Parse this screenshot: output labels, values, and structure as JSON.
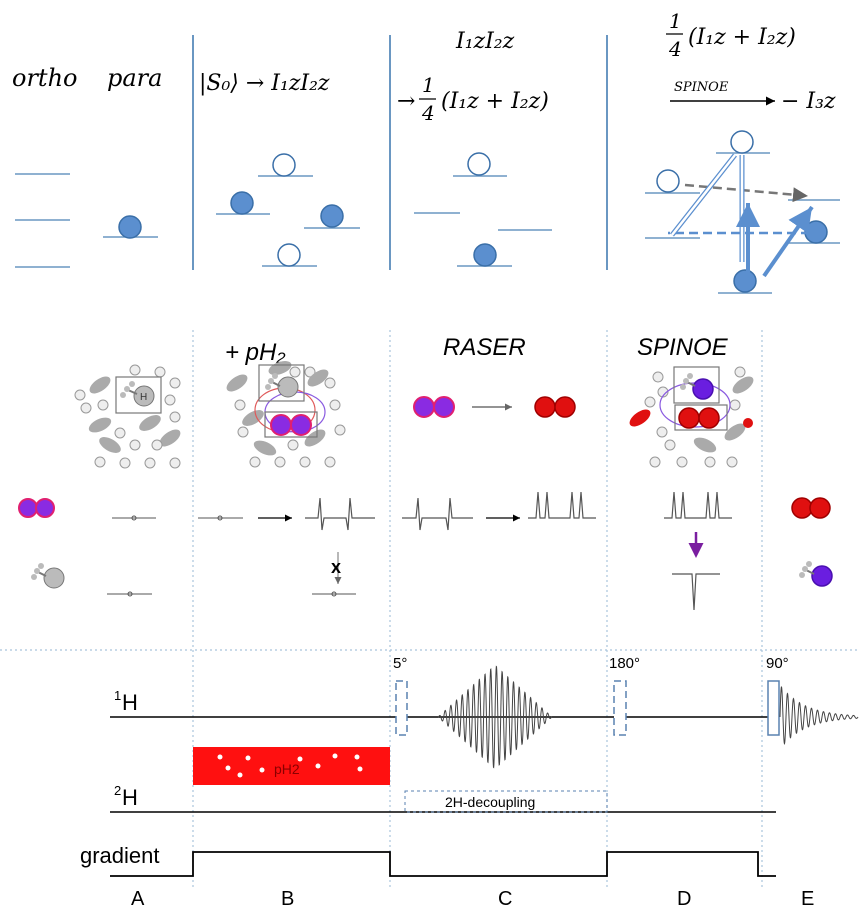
{
  "energy_panels": {
    "ortho_label": "ortho",
    "para_label": "para",
    "panel2_line1": "|S₀⟩ → I₁zI₂z",
    "panel3_line1": "I₁zI₂z",
    "panel3_line2_prefix": "→",
    "panel3_fraction_num": "1",
    "panel3_fraction_den": "4",
    "panel3_expr": "(I₁z + I₂z)",
    "panel4_fraction_num": "1",
    "panel4_fraction_den": "4",
    "panel4_expr": "(I₁z + I₂z)",
    "panel4_arrow_label": "SPINOE",
    "panel4_result": "− I₃z"
  },
  "molecule_panels": {
    "phase_b_title": "+ pH₂",
    "phase_c_title": "RASER",
    "phase_d_title": "SPINOE",
    "h_label": "H",
    "blocked_mark": "x"
  },
  "pulse_sequence": {
    "h1_mass": "1",
    "h1_label": "H",
    "h2_mass": "2",
    "h2_label": "H",
    "gradient_label": "gradient",
    "pulse_5": "5°",
    "pulse_180": "180°",
    "pulse_90": "90°",
    "ph2_block_label": "pH2",
    "decoupling_label": "2H-decoupling"
  },
  "phases": [
    "A",
    "B",
    "C",
    "D",
    "E"
  ],
  "colors": {
    "level_line": "#6a97c2",
    "filled_spin": "#5b8fcf",
    "spin_stroke": "#3a6fa8",
    "divider": "#6a97c2",
    "dotted": "#a9c4dc",
    "ph2_red": "#ff1010",
    "deuterium_purple": "#6a1ee0",
    "hydrogen_magenta": "#c0208a",
    "gray_molecule": "#9a9a9a"
  }
}
